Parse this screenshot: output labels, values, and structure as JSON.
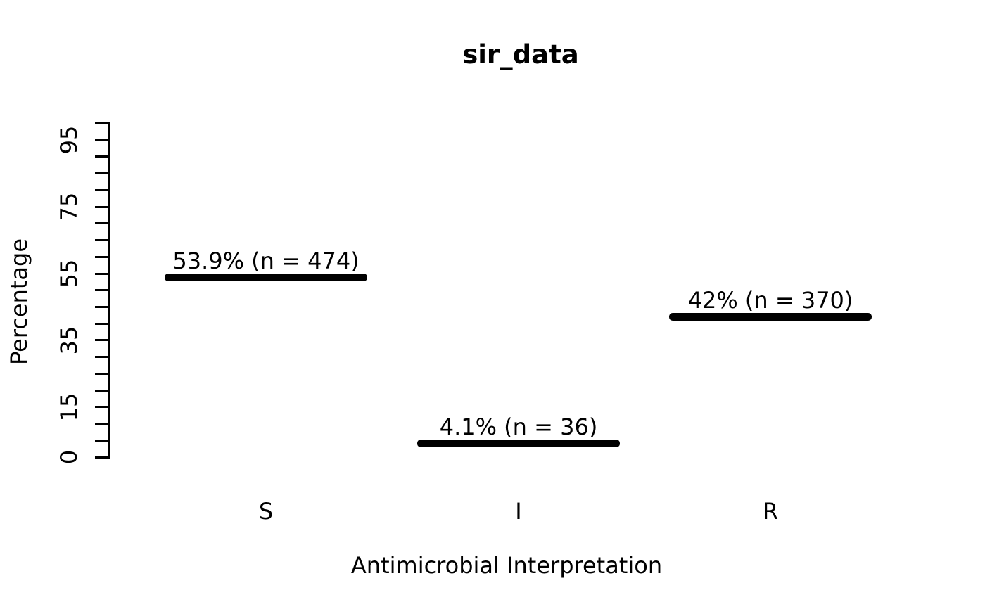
{
  "chart_data": {
    "type": "bar",
    "title": "sir_data",
    "xlabel": "Antimicrobial Interpretation",
    "ylabel": "Percentage",
    "categories": [
      "S",
      "I",
      "R"
    ],
    "values": [
      53.9,
      4.1,
      42
    ],
    "counts": [
      474,
      36,
      370
    ],
    "points": [
      {
        "category": "S",
        "value": 53.9,
        "n": 474,
        "label": "53.9% (n = 474)"
      },
      {
        "category": "I",
        "value": 4.1,
        "n": 36,
        "label": "4.1% (n = 36)"
      },
      {
        "category": "R",
        "value": 42,
        "n": 370,
        "label": "42% (n = 370)"
      }
    ],
    "y_axis": {
      "min": 0,
      "max": 100,
      "tick_step": 5,
      "labeled_ticks": [
        {
          "value": 0,
          "label": "0"
        },
        {
          "value": 15,
          "label": "15"
        },
        {
          "value": 35,
          "label": "35"
        },
        {
          "value": 55,
          "label": "55"
        },
        {
          "value": 75,
          "label": "75"
        },
        {
          "value": 95,
          "label": "95"
        }
      ]
    },
    "grid": false,
    "legend": null,
    "style": {
      "foreground": "#000000",
      "background": "#ffffff",
      "bar_style": "horizontal-segment"
    }
  }
}
